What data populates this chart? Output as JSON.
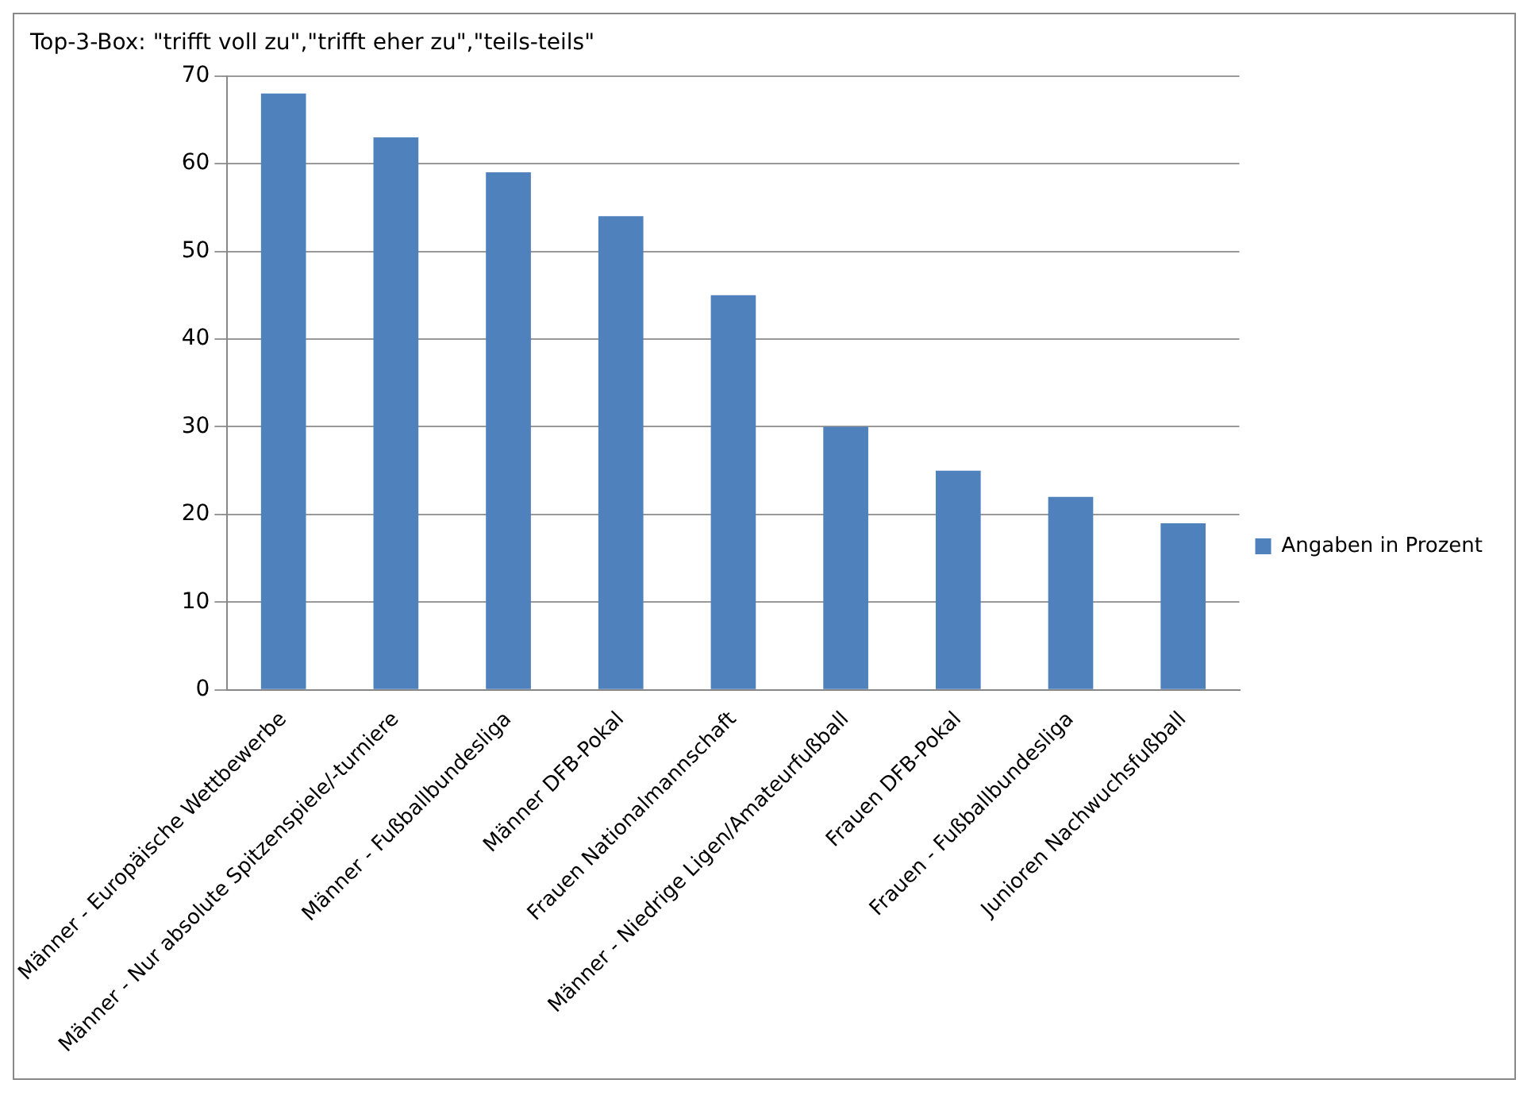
{
  "chart_data": {
    "type": "bar",
    "title": "Top-3-Box: \"trifft voll zu\",\"trifft eher zu\",\"teils-teils\"",
    "categories": [
      "Männer - Europäische Wettbewerbe",
      "Männer - Nur absolute Spitzenspiele/-turniere",
      "Männer - Fußballbundesliga",
      "Männer DFB-Pokal",
      "Frauen Nationalmannschaft",
      "Männer - Niedrige Ligen/Amateurfußball",
      "Frauen DFB-Pokal",
      "Frauen - Fußballbundesliga",
      "Junioren Nachwuchsfußball"
    ],
    "series": [
      {
        "name": "Angaben in Prozent",
        "color": "#4f81bd",
        "values": [
          68,
          63,
          59,
          54,
          45,
          30,
          25,
          22,
          19
        ]
      }
    ],
    "ylim": [
      0,
      70
    ],
    "yticks": [
      0,
      10,
      20,
      30,
      40,
      50,
      60,
      70
    ],
    "grid": "y",
    "legend": "right"
  }
}
